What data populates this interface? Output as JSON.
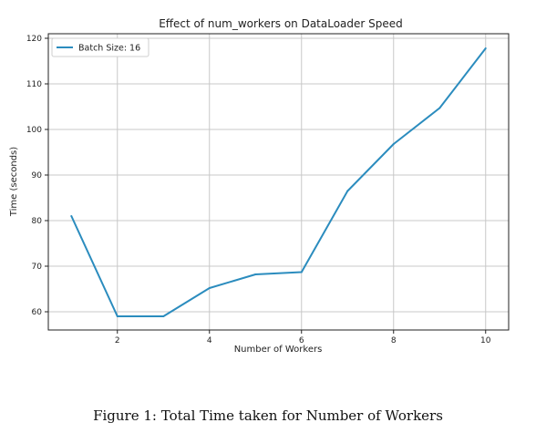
{
  "chart_data": {
    "type": "line",
    "title": "Effect of num_workers on DataLoader Speed",
    "xlabel": "Number of Workers",
    "ylabel": "Time (seconds)",
    "xlim": [
      0.5,
      10.5
    ],
    "ylim": [
      56,
      121
    ],
    "xticks": [
      2,
      4,
      6,
      8,
      10
    ],
    "yticks": [
      60,
      70,
      80,
      90,
      100,
      110,
      120
    ],
    "grid": true,
    "legend_position": "top-left",
    "series": [
      {
        "name": "Batch Size: 16",
        "color": "#2b8cbe",
        "x": [
          1,
          2,
          3,
          4,
          5,
          6,
          7,
          8,
          9,
          10
        ],
        "y": [
          81.0,
          59.0,
          59.0,
          65.2,
          68.2,
          68.7,
          86.5,
          96.8,
          104.7,
          117.8
        ]
      }
    ]
  },
  "caption": "Figure 1:  Total Time taken for Number of Workers"
}
